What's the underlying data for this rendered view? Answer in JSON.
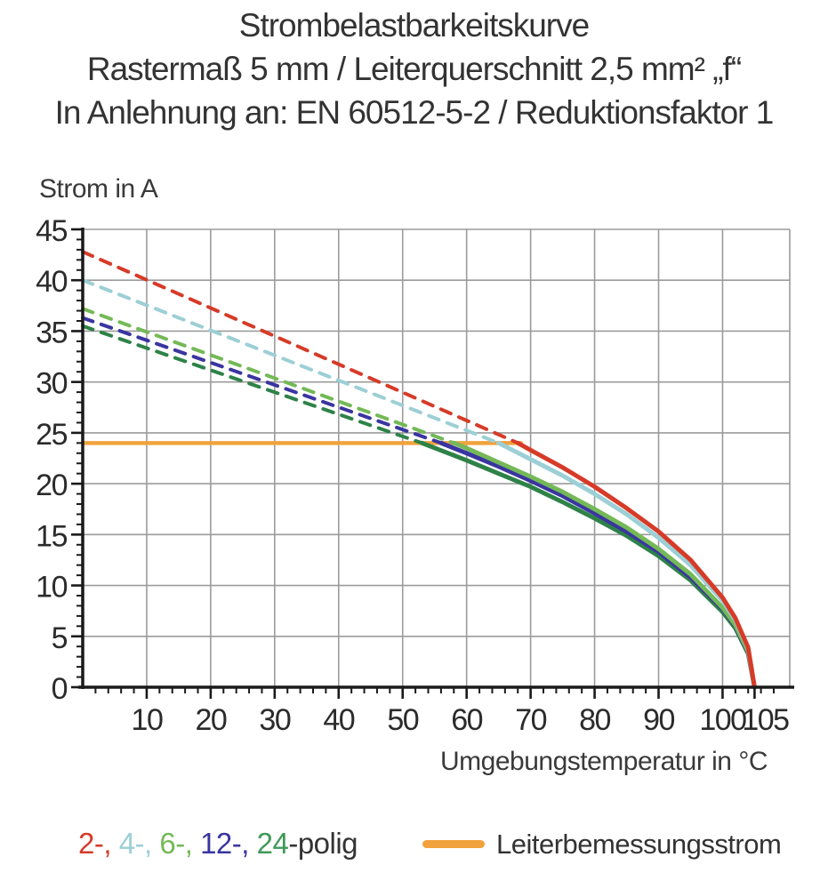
{
  "header": {
    "title_line1": "Strombelastbarkeitskurve",
    "title_line2": "Rastermaß 5 mm / Leiterquerschnitt 2,5 mm² „f“",
    "title_line3": "In Anlehnung an: EN 60512-5-2 / Reduktionsfaktor 1"
  },
  "chart_data": {
    "type": "line",
    "title": "Strombelastbarkeitskurve",
    "xlabel": "Umgebungstemperatur in °C",
    "ylabel": "Strom in A",
    "xlim": [
      0,
      110.5
    ],
    "ylim": [
      0,
      45
    ],
    "x_major_ticks": [
      10,
      20,
      30,
      40,
      50,
      60,
      70,
      80,
      90,
      100,
      105
    ],
    "x_gridlines": [
      10,
      20,
      30,
      40,
      50,
      60,
      70,
      80,
      90,
      100
    ],
    "x_minor_step": 2,
    "y_major_ticks": [
      0,
      5,
      10,
      15,
      20,
      25,
      30,
      35,
      40,
      45
    ],
    "y_minor_step": 1,
    "grid": true,
    "grid_color": "#9b9b9b",
    "axis_color": "#1a1a1a",
    "tick_label_color": "#2b2b2b",
    "legend_position": "bottom",
    "rated_current_line": {
      "label": "Leiterbemessungsstrom",
      "color": "#f1a23c",
      "value": 24,
      "x_start": 0,
      "x_end": 68.5
    },
    "series": [
      {
        "name": "2-polig",
        "color": "#d63b28",
        "style": "dashed-then-solid",
        "dashed_segment": {
          "x": [
            0,
            68
          ],
          "y": [
            42.8,
            24
          ]
        },
        "solid_curve": {
          "x": [
            68,
            70,
            75,
            80,
            85,
            90,
            95,
            100,
            102,
            104,
            105
          ],
          "y": [
            24,
            23.3,
            21.6,
            19.7,
            17.6,
            15.3,
            12.5,
            8.8,
            6.8,
            3.9,
            0
          ]
        }
      },
      {
        "name": "4-polig",
        "color": "#9ccfd6",
        "style": "dashed-then-solid",
        "dashed_segment": {
          "x": [
            0,
            65
          ],
          "y": [
            40,
            24
          ]
        },
        "solid_curve": {
          "x": [
            65,
            70,
            75,
            80,
            85,
            90,
            95,
            100,
            102,
            104,
            105
          ],
          "y": [
            24,
            22.4,
            20.8,
            19.0,
            17.0,
            14.7,
            12.0,
            8.5,
            6.6,
            3.8,
            0
          ]
        }
      },
      {
        "name": "6-polig",
        "color": "#74b957",
        "style": "dashed-then-solid",
        "dashed_segment": {
          "x": [
            0,
            58
          ],
          "y": [
            37.2,
            24
          ]
        },
        "solid_curve": {
          "x": [
            58,
            60,
            65,
            70,
            75,
            80,
            85,
            90,
            95,
            100,
            102,
            104,
            105
          ],
          "y": [
            24,
            23.5,
            22.1,
            20.7,
            19.2,
            17.5,
            15.7,
            13.6,
            11.1,
            7.8,
            6.1,
            3.5,
            0
          ]
        }
      },
      {
        "name": "12-polig",
        "color": "#3a35a0",
        "style": "dashed-then-solid",
        "dashed_segment": {
          "x": [
            0,
            56
          ],
          "y": [
            36.3,
            24
          ]
        },
        "solid_curve": {
          "x": [
            56,
            60,
            65,
            70,
            75,
            80,
            85,
            90,
            95,
            100,
            102,
            104,
            105
          ],
          "y": [
            24,
            23.0,
            21.7,
            20.3,
            18.8,
            17.1,
            15.3,
            13.3,
            10.8,
            7.7,
            6.0,
            3.4,
            0
          ]
        }
      },
      {
        "name": "24-polig",
        "color": "#2e8248",
        "style": "dashed-then-solid",
        "dashed_segment": {
          "x": [
            0,
            53
          ],
          "y": [
            35.5,
            24
          ]
        },
        "solid_curve": {
          "x": [
            53,
            60,
            65,
            70,
            75,
            80,
            85,
            90,
            95,
            100,
            102,
            104,
            105
          ],
          "y": [
            24,
            22.3,
            21.0,
            19.7,
            18.2,
            16.6,
            14.9,
            12.9,
            10.5,
            7.4,
            5.8,
            3.3,
            0
          ]
        }
      }
    ]
  },
  "legend": {
    "pole_items": [
      {
        "label": "2",
        "color": "#d63b28"
      },
      {
        "label": "4",
        "color": "#9ccfd6"
      },
      {
        "label": "6",
        "color": "#74b957"
      },
      {
        "label": "12",
        "color": "#3a35a0"
      },
      {
        "label": "24",
        "color": "#3f9a58"
      }
    ],
    "separator": ", ",
    "suffix": "-polig",
    "rated_line_label": "Leiterbemessungsstrom",
    "rated_line_color": "#f1a23c"
  }
}
